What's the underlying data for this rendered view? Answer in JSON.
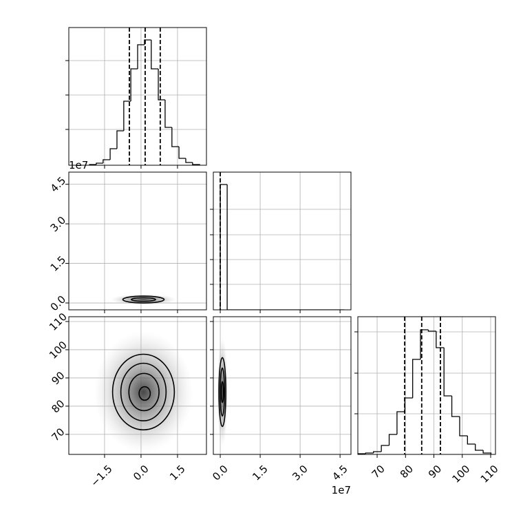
{
  "chart_data": [
    {
      "type": "histogram",
      "bins": [
        -2.12,
        -1.84,
        -1.56,
        -1.27,
        -0.99,
        -0.71,
        -0.42,
        -0.14,
        0.14,
        0.42,
        0.71,
        0.99,
        1.27,
        1.56,
        1.84,
        2.12,
        2.41
      ],
      "values": [
        1,
        3,
        8,
        24,
        50,
        93,
        140,
        175,
        182,
        140,
        95,
        55,
        27,
        10,
        4,
        1
      ],
      "quantiles": [
        -0.48,
        0.17,
        0.79
      ],
      "color": "#000000",
      "xlim": [
        -2.97,
        2.69
      ],
      "xticks": [
        -1.5,
        0,
        1.5
      ],
      "ylim": [
        0,
        200
      ],
      "yticks": [
        52,
        102,
        152
      ],
      "grid": true
    },
    {
      "type": "contour",
      "color": "#000000",
      "y_offset_label": "1e7",
      "contours": [
        {
          "cx": 0.1,
          "cy": 0.13,
          "rx": 0.85,
          "ry": 0.13
        },
        {
          "cx": 0.1,
          "cy": 0.13,
          "rx": 0.5,
          "ry": 0.07
        }
      ],
      "xlim": [
        -2.97,
        2.69
      ],
      "xticks": [
        -1.5,
        0,
        1.5
      ],
      "ylim": [
        -0.26,
        4.96
      ],
      "yticks": [
        {
          "value": 0,
          "label": "0.0"
        },
        {
          "value": 1.5,
          "label": "1.5"
        },
        {
          "value": 3,
          "label": "3.0"
        },
        {
          "value": 4.5,
          "label": "4.5"
        }
      ],
      "grid": true
    },
    {
      "type": "histogram",
      "bins": [
        0,
        0.26,
        4.67
      ],
      "values": [
        182,
        0
      ],
      "quantiles": [
        0
      ],
      "color": "#000000",
      "xlim": [
        -0.26,
        4.91
      ],
      "xticks": [
        0,
        1.5,
        3,
        4.5
      ],
      "ylim": [
        0,
        200
      ],
      "yticks": [
        37,
        73,
        109,
        146
      ],
      "grid": true
    },
    {
      "type": "contour",
      "color": "#000000",
      "contours": [
        {
          "cx": 0.1,
          "cy": 85,
          "rx": 1.27,
          "ry": 13.4
        },
        {
          "cx": 0.1,
          "cy": 85,
          "rx": 0.93,
          "ry": 10.2
        },
        {
          "cx": 0.12,
          "cy": 85,
          "rx": 0.62,
          "ry": 6.6
        },
        {
          "cx": 0.15,
          "cy": 84.5,
          "rx": 0.23,
          "ry": 2.4
        }
      ],
      "xlim": [
        -2.97,
        2.69
      ],
      "xticks": [
        {
          "value": -1.5,
          "label": "−1.5"
        },
        {
          "value": 0,
          "label": "0.0"
        },
        {
          "value": 1.5,
          "label": "1.5"
        }
      ],
      "ylim": [
        62.9,
        111.7
      ],
      "yticks": [
        70,
        80,
        90,
        100,
        110
      ],
      "grid": true
    },
    {
      "type": "contour",
      "color": "#000000",
      "x_offset_label": "1e7",
      "contours": [
        {
          "cx": 0.08,
          "cy": 85,
          "rx": 0.13,
          "ry": 12.2
        },
        {
          "cx": 0.08,
          "cy": 85,
          "rx": 0.08,
          "ry": 8.5
        },
        {
          "cx": 0.08,
          "cy": 85,
          "rx": 0.04,
          "ry": 3.7
        }
      ],
      "xlim": [
        -0.26,
        4.91
      ],
      "xticks": [
        {
          "value": 0,
          "label": "0.0"
        },
        {
          "value": 1.5,
          "label": "1.5"
        },
        {
          "value": 3,
          "label": "3.0"
        },
        {
          "value": 4.5,
          "label": "4.5"
        }
      ],
      "ylim": [
        62.9,
        111.7
      ],
      "yticks": [
        70,
        80,
        90,
        100,
        110
      ],
      "grid": true
    },
    {
      "type": "histogram",
      "bins": [
        63.2,
        65.96,
        68.72,
        71.48,
        74.24,
        77.0,
        79.76,
        82.52,
        85.28,
        88.04,
        90.8,
        93.56,
        96.32,
        99.08,
        101.84,
        104.6,
        107.36,
        110.12
      ],
      "values": [
        1,
        2,
        4,
        13,
        29,
        62,
        82,
        138,
        181,
        179,
        155,
        85,
        55,
        27,
        15,
        6,
        2
      ],
      "quantiles": [
        79.7,
        85.7,
        92.3
      ],
      "color": "#000000",
      "xlim": [
        63.2,
        111.7
      ],
      "xticks": [
        70,
        80,
        90,
        100,
        110
      ],
      "ylim": [
        0,
        200
      ],
      "yticks": [
        59,
        118,
        178
      ],
      "grid": true
    }
  ]
}
